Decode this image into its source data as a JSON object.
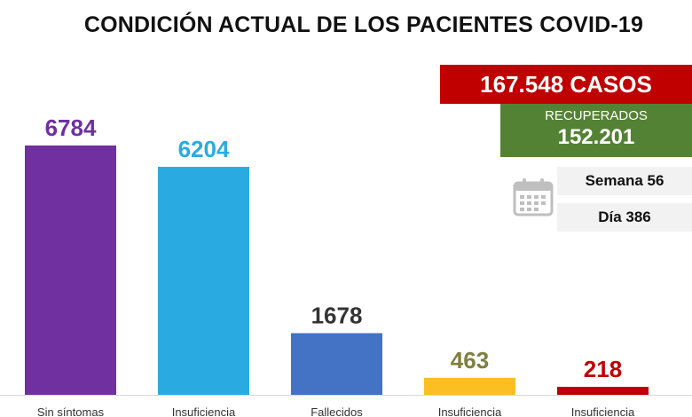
{
  "title": "CONDICIÓN ACTUAL DE LOS PACIENTES COVID-19",
  "summary": {
    "cases": "167.548 CASOS",
    "recovered_label": "RECUPERADOS",
    "recovered_value": "152.201",
    "week": "Semana 56",
    "day": "Día 386",
    "calendar_icon": "calendar-icon"
  },
  "chart_data": {
    "type": "bar",
    "title": "CONDICIÓN ACTUAL DE LOS PACIENTES COVID-19",
    "categories": [
      "Sin síntomas",
      "Insuficiencia",
      "Fallecidos",
      "Insuficiencia",
      "Insuficiencia"
    ],
    "values": [
      6784,
      6204,
      1678,
      463,
      218
    ],
    "colors": [
      "#7030a0",
      "#29abe2",
      "#4472c4",
      "#fbbf24",
      "#c00000"
    ],
    "label_colors": [
      "#7030a0",
      "#29abe2",
      "#333333",
      "#7f7f3f",
      "#c00000"
    ],
    "xlabel": "",
    "ylabel": "",
    "grid": false,
    "legend": "none"
  }
}
